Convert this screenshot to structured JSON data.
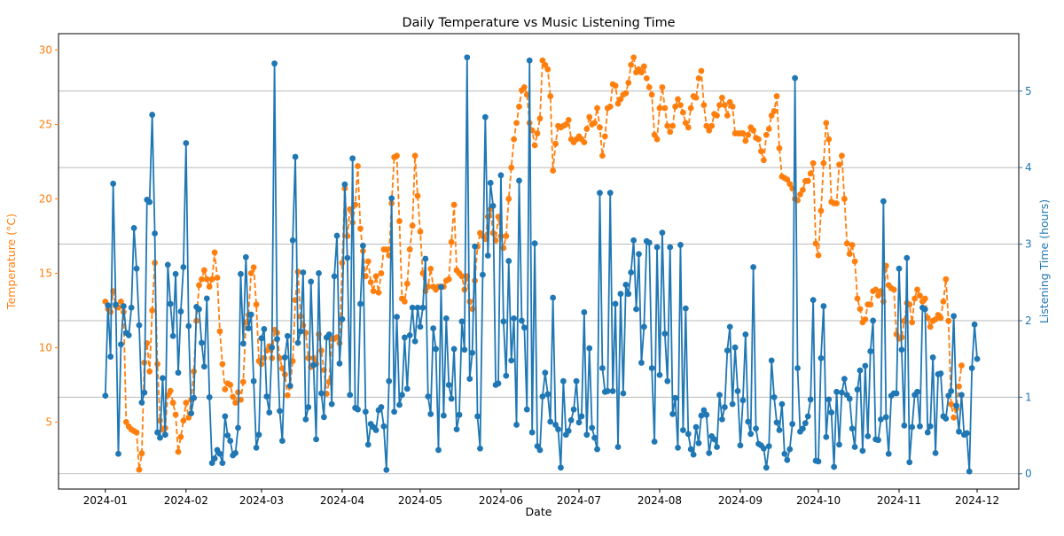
{
  "chart_data": {
    "type": "line",
    "title": "Daily Temperature vs Music Listening Time",
    "xlabel": "Date",
    "ylabel_left": "Temperature (°C)",
    "ylabel_right": "Listening Time (hours)",
    "xlim": [
      "2023-12-14",
      "2024-12-17"
    ],
    "ylim_left": [
      0.5,
      31.1
    ],
    "ylim_right": [
      -0.2,
      5.75
    ],
    "grid": "horizontal, right axis",
    "colors": {
      "temperature": "#ff7f0e",
      "listening": "#1f77b4",
      "grid": "#b0b0b0",
      "text": "#000000"
    },
    "x_ticks": [
      "2024-01",
      "2024-02",
      "2024-03",
      "2024-04",
      "2024-05",
      "2024-06",
      "2024-07",
      "2024-08",
      "2024-09",
      "2024-10",
      "2024-11",
      "2024-12"
    ],
    "y_ticks_left": [
      5,
      10,
      15,
      20,
      25,
      30
    ],
    "y_ticks_right": [
      0,
      1,
      2,
      3,
      4,
      5
    ],
    "series": [
      {
        "style": "dashed line, circle markers",
        "axis": "left",
        "start": "2024-01-01",
        "end": "2024-11-30",
        "values": [
          13.1,
          12.6,
          12.4,
          13.8,
          12.8,
          12.7,
          13.1,
          12.4,
          5.0,
          4.7,
          4.5,
          4.4,
          4.3,
          1.8,
          2.9,
          9.0,
          10.3,
          8.4,
          12.5,
          15.7,
          8.9,
          5.1,
          4.5,
          4.6,
          6.8,
          7.1,
          6.3,
          5.5,
          3.0,
          4.0,
          5.1,
          6.3,
          5.3,
          6.5,
          8.4,
          11.8,
          14.2,
          14.6,
          15.2,
          14.6,
          14.1,
          14.6,
          16.4,
          14.7,
          11.1,
          8.9,
          7.2,
          7.6,
          7.5,
          6.7,
          6.3,
          7.0,
          6.5,
          7.7,
          11.7,
          12.2,
          15.0,
          15.4,
          12.9,
          9.1,
          8.9,
          9.3,
          9.8,
          10.1,
          9.3,
          11.2,
          11.0,
          9.3,
          8.6,
          8.2,
          6.8,
          7.4,
          9.1,
          13.2,
          15.1,
          12.1,
          11.5,
          11.0,
          9.3,
          8.7,
          9.3,
          8.9,
          10.9,
          9.8,
          8.5,
          6.9,
          7.7,
          10.6,
          10.6,
          10.7,
          10.3,
          15.7,
          20.7,
          17.5,
          19.3,
          18.4,
          19.6,
          22.2,
          18.0,
          16.5,
          14.8,
          15.8,
          14.4,
          13.8,
          14.8,
          13.7,
          15.0,
          16.6,
          16.6,
          16.2,
          19.7,
          22.8,
          22.9,
          18.5,
          13.3,
          13.1,
          14.3,
          16.6,
          18.2,
          22.9,
          20.2,
          17.8,
          15.0,
          13.8,
          14.1,
          15.3,
          14.1,
          13.9,
          14.1,
          14.1,
          14.1,
          14.5,
          14.6,
          17.1,
          19.6,
          15.2,
          15.0,
          14.8,
          13.9,
          14.8,
          13.1,
          12.6,
          14.5,
          16.8,
          17.7,
          17.5,
          17.3,
          18.8,
          19.3,
          17.7,
          17.2,
          18.8,
          17.5,
          16.7,
          17.5,
          20.0,
          22.1,
          24.0,
          25.1,
          26.2,
          27.3,
          27.5,
          27.0,
          25.1,
          24.6,
          23.6,
          24.4,
          25.4,
          29.3,
          29.0,
          28.7,
          26.9,
          21.9,
          23.7,
          24.9,
          24.8,
          24.9,
          25.0,
          25.3,
          24.0,
          23.8,
          24.0,
          24.2,
          24.0,
          23.8,
          24.7,
          25.5,
          25.0,
          25.1,
          26.1,
          24.8,
          22.9,
          24.2,
          26.1,
          26.2,
          27.7,
          27.6,
          26.4,
          26.7,
          27.0,
          27.1,
          27.8,
          29.0,
          29.5,
          28.5,
          28.7,
          28.5,
          28.9,
          28.1,
          27.5,
          27.0,
          24.3,
          24.0,
          26.1,
          27.5,
          26.1,
          24.9,
          24.5,
          24.9,
          26.2,
          26.7,
          26.3,
          25.8,
          25.1,
          24.8,
          26.1,
          26.9,
          26.8,
          28.1,
          28.6,
          26.3,
          24.9,
          24.6,
          24.9,
          25.7,
          25.6,
          26.3,
          26.8,
          26.3,
          25.6,
          26.5,
          26.2,
          24.4,
          24.4,
          24.4,
          24.4,
          23.9,
          24.3,
          24.8,
          24.6,
          24.1,
          24.0,
          23.2,
          22.6,
          24.3,
          24.7,
          25.6,
          25.9,
          26.9,
          23.4,
          21.5,
          21.4,
          21.3,
          21.0,
          20.7,
          20.0,
          19.9,
          20.3,
          20.6,
          21.2,
          21.2,
          21.7,
          22.4,
          17.0,
          16.2,
          19.2,
          22.4,
          25.1,
          24.0,
          19.8,
          19.7,
          19.7,
          22.3,
          22.9,
          20.0,
          17.0,
          16.3,
          16.9,
          15.8,
          13.3,
          12.6,
          11.7,
          11.9,
          12.9,
          12.9,
          13.8,
          13.9,
          13.5,
          13.8,
          13.1,
          15.5,
          14.2,
          14.0,
          13.9,
          10.9,
          10.6,
          10.7,
          11.8,
          13.0,
          12.9,
          11.7,
          13.3,
          13.9,
          13.5,
          13.1,
          13.3,
          12.0,
          11.4,
          11.8,
          11.9,
          12.2,
          12.0,
          13.1,
          14.6,
          11.8,
          6.2,
          5.3,
          5.9,
          7.4,
          8.8
        ]
      },
      {
        "style": "solid line, circle markers",
        "axis": "right",
        "start": "2024-01-01",
        "end": "2024-11-30",
        "values": [
          1.02,
          2.2,
          1.53,
          3.79,
          2.21,
          0.26,
          1.69,
          2.19,
          1.84,
          1.81,
          2.17,
          3.21,
          2.68,
          1.94,
          0.93,
          1.06,
          3.58,
          3.55,
          4.69,
          3.14,
          0.54,
          0.47,
          1.25,
          0.51,
          2.73,
          2.22,
          1.8,
          2.61,
          1.32,
          2.12,
          2.7,
          4.32,
          1.93,
          0.79,
          0.99,
          2.18,
          2.15,
          1.71,
          1.4,
          2.29,
          1.0,
          0.14,
          0.2,
          0.31,
          0.26,
          0.14,
          0.75,
          0.5,
          0.43,
          0.24,
          0.27,
          0.6,
          2.61,
          1.7,
          2.83,
          1.9,
          2.08,
          1.21,
          0.34,
          0.51,
          1.77,
          1.89,
          1.01,
          0.8,
          1.65,
          5.36,
          1.76,
          0.82,
          0.43,
          1.52,
          1.8,
          1.15,
          3.05,
          4.14,
          1.71,
          1.86,
          2.63,
          0.71,
          0.87,
          2.51,
          1.42,
          0.45,
          2.62,
          1.05,
          0.74,
          1.78,
          1.82,
          0.91,
          2.58,
          3.11,
          1.44,
          2.02,
          3.78,
          2.82,
          1.03,
          4.12,
          0.86,
          0.84,
          2.22,
          2.98,
          0.81,
          0.38,
          0.65,
          0.61,
          0.57,
          0.83,
          0.87,
          0.62,
          0.05,
          1.21,
          3.6,
          0.81,
          2.05,
          0.9,
          1.03,
          1.78,
          1.11,
          1.81,
          2.17,
          1.73,
          2.17,
          1.92,
          2.17,
          2.81,
          1.01,
          0.78,
          1.9,
          1.63,
          0.31,
          2.44,
          0.76,
          2.03,
          1.16,
          0.98,
          1.63,
          0.58,
          0.77,
          1.99,
          1.62,
          5.44,
          1.24,
          1.58,
          2.97,
          0.75,
          0.33,
          2.6,
          4.66,
          2.85,
          3.8,
          3.5,
          1.16,
          1.18,
          3.9,
          1.99,
          1.28,
          2.78,
          1.48,
          2.03,
          0.64,
          3.83,
          2.0,
          1.91,
          0.84,
          5.4,
          0.54,
          3.01,
          0.36,
          0.31,
          1.01,
          1.32,
          1.04,
          0.68,
          2.3,
          0.64,
          0.58,
          0.08,
          1.21,
          0.51,
          0.56,
          0.7,
          0.84,
          1.21,
          0.67,
          0.75,
          2.11,
          0.51,
          1.64,
          0.6,
          0.47,
          0.32,
          3.67,
          1.38,
          1.07,
          1.08,
          3.67,
          1.08,
          2.22,
          0.35,
          2.35,
          1.05,
          2.47,
          2.35,
          2.63,
          3.05,
          2.15,
          2.87,
          1.45,
          1.92,
          3.04,
          3.02,
          1.38,
          0.42,
          2.96,
          1.29,
          3.15,
          1.83,
          1.21,
          2.96,
          0.78,
          0.99,
          0.34,
          2.99,
          0.57,
          2.16,
          0.52,
          0.32,
          0.25,
          0.61,
          0.4,
          0.76,
          0.83,
          0.77,
          0.27,
          0.49,
          0.45,
          0.35,
          1.03,
          0.71,
          0.87,
          1.61,
          1.92,
          0.91,
          1.65,
          1.08,
          0.37,
          0.96,
          1.82,
          0.68,
          0.52,
          2.7,
          0.59,
          0.39,
          0.37,
          0.33,
          0.08,
          0.36,
          1.48,
          1.0,
          0.67,
          0.57,
          0.91,
          0.26,
          0.18,
          0.32,
          0.65,
          5.17,
          1.38,
          0.55,
          0.59,
          0.66,
          0.75,
          0.97,
          2.27,
          0.17,
          0.16,
          1.51,
          2.19,
          0.48,
          0.97,
          0.8,
          0.09,
          1.07,
          0.38,
          1.06,
          1.24,
          1.03,
          0.98,
          0.59,
          0.35,
          1.1,
          1.35,
          0.3,
          1.41,
          0.49,
          1.6,
          2.0,
          0.45,
          0.44,
          0.71,
          3.56,
          0.74,
          0.26,
          1.02,
          1.05,
          1.05,
          2.68,
          1.62,
          0.63,
          2.82,
          0.15,
          0.61,
          1.03,
          1.07,
          0.62,
          2.17,
          2.15,
          0.54,
          0.62,
          1.52,
          0.27,
          1.3,
          1.31,
          0.75,
          0.72,
          1.02,
          1.08,
          2.06,
          0.89,
          0.55,
          1.03,
          0.51,
          0.53,
          0.03,
          1.38,
          1.95,
          1.5
        ]
      }
    ]
  }
}
